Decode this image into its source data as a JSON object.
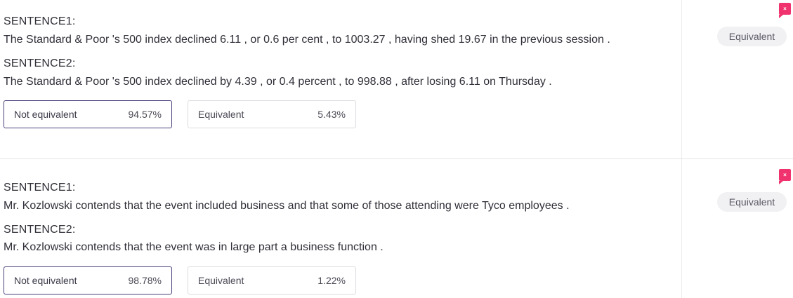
{
  "items": [
    {
      "sentence1_label": "SENTENCE1:",
      "sentence1": "The Standard & Poor 's 500 index declined 6.11 , or 0.6 per cent , to 1003.27 , having shed 19.67 in the previous session .",
      "sentence2_label": "SENTENCE2:",
      "sentence2": "The Standard & Poor 's 500 index declined by 4.39 , or 0.4 percent , to 998.88 , after losing 6.11 on Thursday .",
      "choices": [
        {
          "label": "Not equivalent",
          "score": "94.57%",
          "selected": true
        },
        {
          "label": "Equivalent",
          "score": "5.43%",
          "selected": false
        }
      ],
      "flag_icon": "flag-x-icon",
      "flag_glyph": "×",
      "gold_label": "Equivalent"
    },
    {
      "sentence1_label": "SENTENCE1:",
      "sentence1": "Mr. Kozlowski contends that the event included business and that some of those attending were Tyco employees .",
      "sentence2_label": "SENTENCE2:",
      "sentence2": "Mr. Kozlowski contends that the event was in large part a business function .",
      "choices": [
        {
          "label": "Not equivalent",
          "score": "98.78%",
          "selected": true
        },
        {
          "label": "Equivalent",
          "score": "1.22%",
          "selected": false
        }
      ],
      "flag_icon": "flag-x-icon",
      "flag_glyph": "×",
      "gold_label": "Equivalent"
    }
  ],
  "colors": {
    "flag": "#f0336e",
    "selected_border": "#4b3f7a",
    "tag_bg": "#f1f1f3"
  }
}
